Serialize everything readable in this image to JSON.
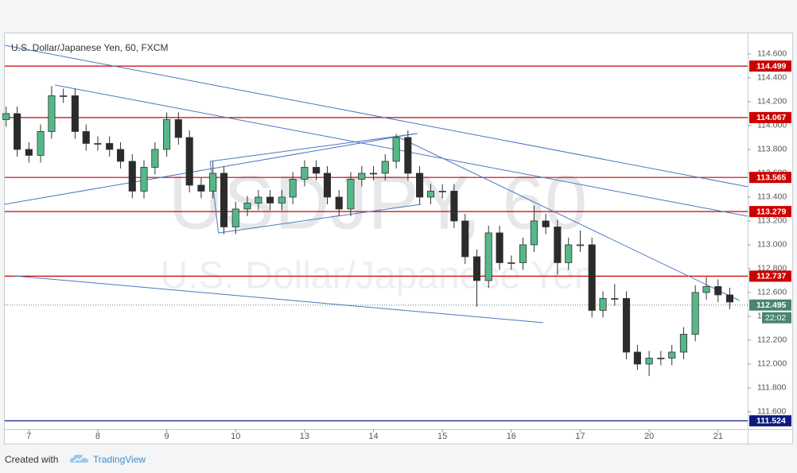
{
  "chart_data": {
    "type": "candlestick",
    "title": "U.S. Dollar/Japanese Yen, 60, FXCM",
    "watermark": "USDJPY, 60",
    "watermark_subtitle": "U.S. Dollar/Japanese Yen",
    "up_color": "#53b987",
    "down_color": "#2b2b2b",
    "x": [
      -0.33,
      -0.17,
      0,
      0.17,
      0.33,
      0.5,
      0.67,
      0.83,
      1,
      1.17,
      1.33,
      1.5,
      1.67,
      1.83,
      2,
      2.17,
      2.33,
      2.5,
      2.67,
      2.83,
      3,
      3.17,
      3.33,
      3.5,
      3.67,
      3.83,
      4,
      4.17,
      4.33,
      4.5,
      4.67,
      4.83,
      5,
      5.17,
      5.33,
      5.5,
      5.67,
      5.83,
      6,
      6.17,
      6.33,
      6.5,
      6.67,
      6.83,
      7,
      7.17,
      7.33,
      7.5,
      7.67,
      7.83,
      8,
      8.17,
      8.33,
      8.5,
      8.67,
      8.83,
      9,
      9.17,
      9.33,
      9.5,
      9.67,
      9.83,
      10,
      10.17
    ],
    "open": [
      114.05,
      114.1,
      113.8,
      113.75,
      113.95,
      114.25,
      114.25,
      113.95,
      113.85,
      113.85,
      113.8,
      113.7,
      113.45,
      113.65,
      113.8,
      114.05,
      113.9,
      113.5,
      113.45,
      113.6,
      113.15,
      113.3,
      113.35,
      113.4,
      113.35,
      113.4,
      113.55,
      113.65,
      113.6,
      113.4,
      113.3,
      113.55,
      113.6,
      113.6,
      113.7,
      113.9,
      113.6,
      113.4,
      113.45,
      113.45,
      113.2,
      112.9,
      112.7,
      113.1,
      112.85,
      112.85,
      113.0,
      113.2,
      113.15,
      112.85,
      113.0,
      113.0,
      112.45,
      112.55,
      112.55,
      112.1,
      112.0,
      112.05,
      112.05,
      112.1,
      112.25,
      112.6,
      112.65,
      112.58
    ],
    "high": [
      114.16,
      114.16,
      113.86,
      114.01,
      114.33,
      114.31,
      114.31,
      114.01,
      113.91,
      113.91,
      113.86,
      113.76,
      113.71,
      113.86,
      114.11,
      114.11,
      113.96,
      113.56,
      113.7,
      113.66,
      113.36,
      113.41,
      113.46,
      113.46,
      113.46,
      113.61,
      113.71,
      113.71,
      113.66,
      113.46,
      113.61,
      113.66,
      113.66,
      113.76,
      113.93,
      113.96,
      113.66,
      113.51,
      113.51,
      113.51,
      113.26,
      112.96,
      113.16,
      113.16,
      112.91,
      113.06,
      113.33,
      113.26,
      113.21,
      113.06,
      113.12,
      113.06,
      112.61,
      112.67,
      112.61,
      112.16,
      112.11,
      112.11,
      112.16,
      112.31,
      112.66,
      112.73,
      112.71,
      112.64
    ],
    "low": [
      113.99,
      113.74,
      113.69,
      113.69,
      113.89,
      114.19,
      113.89,
      113.79,
      113.79,
      113.74,
      113.64,
      113.39,
      113.39,
      113.59,
      113.74,
      113.84,
      113.44,
      113.39,
      113.39,
      113.09,
      113.09,
      113.24,
      113.29,
      113.29,
      113.29,
      113.34,
      113.49,
      113.54,
      113.34,
      113.24,
      113.24,
      113.49,
      113.54,
      113.54,
      113.64,
      113.54,
      113.34,
      113.34,
      113.39,
      113.14,
      112.84,
      112.48,
      112.64,
      112.79,
      112.79,
      112.79,
      112.94,
      113.09,
      112.75,
      112.79,
      112.94,
      112.39,
      112.39,
      112.49,
      112.04,
      111.95,
      111.9,
      111.99,
      111.99,
      112.04,
      112.19,
      112.54,
      112.52,
      112.46
    ],
    "close": [
      114.1,
      113.8,
      113.75,
      113.95,
      114.25,
      114.25,
      113.95,
      113.85,
      113.85,
      113.8,
      113.7,
      113.45,
      113.65,
      113.8,
      114.05,
      113.9,
      113.5,
      113.45,
      113.6,
      113.15,
      113.3,
      113.35,
      113.4,
      113.35,
      113.4,
      113.55,
      113.65,
      113.6,
      113.4,
      113.3,
      113.55,
      113.6,
      113.6,
      113.7,
      113.9,
      113.6,
      113.4,
      113.45,
      113.45,
      113.2,
      112.9,
      112.7,
      113.1,
      112.85,
      112.85,
      113.0,
      113.2,
      113.15,
      112.85,
      113.0,
      113.0,
      112.45,
      112.55,
      112.55,
      112.1,
      112.0,
      112.05,
      112.05,
      112.1,
      112.25,
      112.6,
      112.65,
      112.58,
      112.52
    ],
    "xlim": [
      -0.35,
      10.43
    ],
    "xticks": [
      {
        "value": 0,
        "label": "7"
      },
      {
        "value": 1,
        "label": "8"
      },
      {
        "value": 2,
        "label": "9"
      },
      {
        "value": 3,
        "label": "10"
      },
      {
        "value": 4,
        "label": "13"
      },
      {
        "value": 5,
        "label": "14"
      },
      {
        "value": 6,
        "label": "15"
      },
      {
        "value": 7,
        "label": "16"
      },
      {
        "value": 8,
        "label": "17"
      },
      {
        "value": 9,
        "label": "20"
      },
      {
        "value": 10,
        "label": "21"
      }
    ],
    "ylim": [
      111.453,
      114.773
    ],
    "yticks": [
      {
        "value": 111.6,
        "label": "111.600"
      },
      {
        "value": 111.8,
        "label": "111.800"
      },
      {
        "value": 112,
        "label": "112.000"
      },
      {
        "value": 112.2,
        "label": "112.200"
      },
      {
        "value": 112.4,
        "label": "112.400"
      },
      {
        "value": 112.6,
        "label": "112.600"
      },
      {
        "value": 112.8,
        "label": "112.800"
      },
      {
        "value": 113,
        "label": "113.000"
      },
      {
        "value": 113.2,
        "label": "113.200"
      },
      {
        "value": 113.4,
        "label": "113.400"
      },
      {
        "value": 113.6,
        "label": "113.600"
      },
      {
        "value": 113.8,
        "label": "113.800"
      },
      {
        "value": 114,
        "label": "114.000"
      },
      {
        "value": 114.2,
        "label": "114.200"
      },
      {
        "value": 114.4,
        "label": "114.400"
      },
      {
        "value": 114.6,
        "label": "114.600"
      }
    ],
    "levels": [
      {
        "value": 114.499,
        "color": "#cc0000"
      },
      {
        "value": 114.067,
        "color": "#cc0000"
      },
      {
        "value": 113.565,
        "color": "#cc0000"
      },
      {
        "value": 113.279,
        "color": "#cc0000"
      },
      {
        "value": 112.737,
        "color": "#cc0000"
      },
      {
        "value": 111.524,
        "color": "#0c1a80"
      }
    ],
    "current_price": 112.495,
    "current_color": "#4a8571",
    "countdown": "22:02",
    "trendline_color": "#4a78c2",
    "trendlines": [
      {
        "x": [
          -0.35,
          10.43
        ],
        "y": [
          114.673,
          113.487
        ]
      },
      {
        "x": [
          0.38,
          10.43
        ],
        "y": [
          114.34,
          113.24
        ]
      },
      {
        "x": [
          5.35,
          10.31
        ],
        "y": [
          113.907,
          112.533
        ]
      },
      {
        "x": [
          -0.35,
          5.61
        ],
        "y": [
          113.34,
          113.933
        ]
      },
      {
        "x": [
          2.63,
          5.64
        ],
        "y": [
          113.7,
          113.933
        ]
      },
      {
        "x": [
          2.75,
          5.69
        ],
        "y": [
          113.1,
          113.34
        ]
      },
      {
        "x": [
          2.63,
          2.75
        ],
        "y": [
          113.7,
          113.1
        ]
      },
      {
        "x": [
          -0.22,
          7.46
        ],
        "y": [
          112.74,
          112.347
        ]
      }
    ]
  },
  "footer": {
    "created_with": "Created with",
    "brand": "TradingView"
  }
}
